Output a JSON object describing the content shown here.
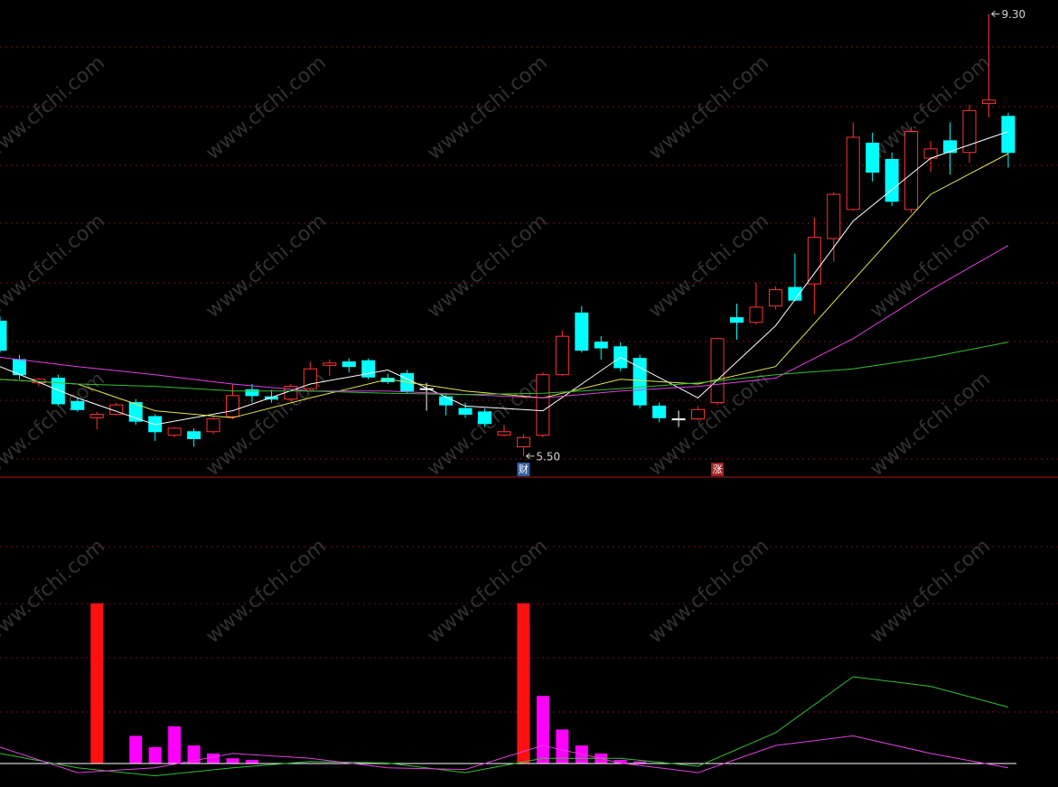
{
  "watermark": "www.cfchi.com",
  "chart_data": [
    {
      "type": "candlestick",
      "ylim": [
        5.32,
        9.42
      ],
      "up_color": "#ff3232",
      "down_color": "#00ffff",
      "flat_color": "#ffffff",
      "open": [
        6.66,
        6.33,
        6.13,
        6.17,
        5.97,
        5.83,
        5.86,
        5.96,
        5.84,
        5.68,
        5.71,
        5.71,
        5.84,
        6.07,
        6.01,
        5.99,
        6.08,
        6.28,
        6.31,
        6.32,
        6.17,
        6.21,
        6.08,
        6.01,
        5.91,
        5.88,
        5.68,
        5.58,
        5.68,
        6.2,
        6.73,
        6.48,
        6.44,
        6.34,
        5.93,
        5.82,
        5.82,
        5.96,
        6.69,
        6.65,
        6.79,
        6.95,
        6.98,
        7.37,
        7.62,
        8.19,
        8.05,
        7.62,
        8.06,
        8.21,
        8.11,
        8.53,
        8.42
      ],
      "high": [
        6.7,
        6.37,
        6.17,
        6.2,
        6.0,
        5.88,
        5.96,
        5.99,
        5.86,
        5.75,
        5.74,
        5.85,
        6.12,
        6.12,
        6.07,
        6.12,
        6.31,
        6.33,
        6.34,
        6.34,
        6.21,
        6.24,
        6.13,
        6.04,
        5.96,
        5.91,
        5.77,
        5.69,
        6.22,
        6.58,
        6.79,
        6.53,
        6.48,
        6.37,
        5.96,
        5.89,
        5.93,
        6.52,
        6.81,
        6.99,
        6.96,
        7.24,
        7.55,
        7.77,
        8.37,
        8.28,
        8.11,
        8.33,
        8.21,
        8.37,
        8.52,
        9.3,
        8.45
      ],
      "low": [
        6.39,
        6.16,
        6.1,
        5.93,
        5.88,
        5.73,
        5.85,
        5.77,
        5.63,
        5.66,
        5.58,
        5.69,
        5.82,
        5.96,
        5.96,
        5.97,
        6.06,
        6.19,
        6.22,
        6.16,
        6.12,
        6.04,
        5.89,
        5.85,
        5.83,
        5.75,
        5.67,
        5.5,
        5.66,
        6.19,
        6.39,
        6.33,
        6.23,
        5.91,
        5.79,
        5.75,
        5.81,
        5.94,
        6.5,
        6.63,
        6.76,
        6.83,
        6.72,
        7.17,
        7.61,
        7.86,
        7.65,
        7.59,
        7.94,
        7.92,
        8.02,
        8.41,
        7.98
      ],
      "close": [
        6.41,
        6.2,
        6.16,
        5.95,
        5.9,
        5.86,
        5.94,
        5.8,
        5.71,
        5.74,
        5.65,
        5.82,
        6.02,
        6.02,
        5.99,
        6.1,
        6.25,
        6.3,
        6.27,
        6.18,
        6.14,
        6.06,
        6.08,
        5.94,
        5.86,
        5.78,
        5.71,
        5.66,
        6.2,
        6.53,
        6.41,
        6.43,
        6.26,
        5.94,
        5.83,
        5.82,
        5.9,
        6.51,
        6.65,
        6.78,
        6.93,
        6.84,
        7.38,
        7.75,
        8.24,
        7.94,
        7.69,
        8.29,
        8.14,
        8.11,
        8.47,
        8.56,
        8.11
      ],
      "lines": [
        {
          "color": "#ffffff",
          "x": [
            0,
            4,
            8,
            12,
            16,
            20,
            24,
            28,
            32,
            36,
            40,
            44,
            48,
            52
          ],
          "values": [
            6.27,
            6.0,
            5.77,
            5.89,
            6.12,
            6.24,
            5.93,
            5.89,
            6.35,
            6.0,
            6.62,
            7.52,
            8.06,
            8.29
          ]
        },
        {
          "color": "#e6e64a",
          "x": [
            0,
            4,
            8,
            12,
            16,
            20,
            24,
            28,
            32,
            36,
            40,
            44,
            48,
            52
          ],
          "values": [
            6.16,
            6.12,
            5.89,
            5.83,
            6.0,
            6.16,
            6.06,
            6.0,
            6.16,
            6.12,
            6.27,
            7.01,
            7.75,
            8.1
          ]
        },
        {
          "color": "#e040e0",
          "x": [
            0,
            4,
            8,
            12,
            16,
            20,
            24,
            28,
            32,
            36,
            40,
            44,
            48,
            52
          ],
          "values": [
            6.35,
            6.27,
            6.2,
            6.12,
            6.06,
            6.06,
            6.03,
            6.0,
            6.06,
            6.1,
            6.17,
            6.51,
            6.93,
            7.31
          ]
        },
        {
          "color": "#30c030",
          "x": [
            0,
            4,
            8,
            12,
            16,
            20,
            24,
            28,
            32,
            36,
            40,
            44,
            48,
            52
          ],
          "values": [
            6.16,
            6.12,
            6.1,
            6.06,
            6.06,
            6.04,
            6.03,
            6.04,
            6.08,
            6.13,
            6.2,
            6.25,
            6.35,
            6.48
          ]
        }
      ],
      "annotations": [
        {
          "x": 51,
          "y": 9.3,
          "label": "9.30"
        },
        {
          "x": 27,
          "y": 5.5,
          "label": "5.50"
        }
      ],
      "events": [
        {
          "x": 27,
          "label": "财",
          "color": "#3060a0"
        },
        {
          "x": 37,
          "label": "涨",
          "color": "#a02020"
        }
      ]
    },
    {
      "type": "bar",
      "ylim": [
        -15,
        179
      ],
      "bars": [
        {
          "color": "#ff00ff",
          "x": [
            7,
            8,
            9,
            10,
            11,
            12,
            13,
            27,
            28,
            29,
            30,
            31,
            32,
            33
          ],
          "values": [
            17,
            10,
            23,
            11,
            6,
            3,
            2,
            85,
            42,
            21,
            11,
            6,
            2,
            1
          ]
        },
        {
          "color": "#ff1010",
          "x": [
            5,
            27
          ],
          "values": [
            100,
            100
          ]
        }
      ],
      "lines": [
        {
          "color": "#30c030",
          "x": [
            0,
            4,
            8,
            12,
            16,
            20,
            24,
            28,
            32,
            36,
            40,
            44,
            48,
            52
          ],
          "values": [
            6,
            -3,
            -8,
            -3,
            1,
            0,
            -6,
            3,
            3,
            -2,
            19,
            54,
            48,
            35
          ]
        },
        {
          "color": "#e040e0",
          "x": [
            0,
            4,
            8,
            12,
            16,
            20,
            24,
            28,
            32,
            36,
            40,
            44,
            48,
            52
          ],
          "values": [
            10,
            -6,
            -3,
            6,
            3,
            -3,
            -4,
            11,
            0,
            -6,
            11,
            17,
            6,
            -3
          ]
        }
      ]
    }
  ]
}
